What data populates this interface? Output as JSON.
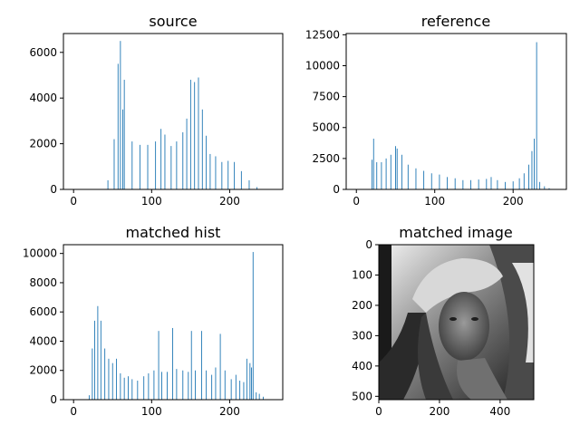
{
  "chart_data": [
    {
      "type": "bar",
      "title": "source",
      "xlabel": "",
      "ylabel": "",
      "xlim": [
        -13,
        268
      ],
      "ylim": [
        0,
        6825
      ],
      "xticks": [
        0,
        100,
        200
      ],
      "yticks": [
        0,
        2000,
        4000,
        6000
      ],
      "series": [
        {
          "bars": [
            [
              44,
              400
            ],
            [
              52,
              2200
            ],
            [
              57,
              5500
            ],
            [
              60,
              6500
            ],
            [
              63,
              3500
            ],
            [
              65,
              4800
            ],
            [
              75,
              2100
            ],
            [
              85,
              1950
            ],
            [
              95,
              1950
            ],
            [
              105,
              2100
            ],
            [
              112,
              2650
            ],
            [
              117,
              2400
            ],
            [
              125,
              1900
            ],
            [
              132,
              2100
            ],
            [
              140,
              2500
            ],
            [
              145,
              3100
            ],
            [
              150,
              4800
            ],
            [
              155,
              4700
            ],
            [
              160,
              4900
            ],
            [
              165,
              3500
            ],
            [
              170,
              2350
            ],
            [
              175,
              1550
            ],
            [
              182,
              1450
            ],
            [
              190,
              1200
            ],
            [
              198,
              1250
            ],
            [
              206,
              1200
            ],
            [
              215,
              800
            ],
            [
              225,
              400
            ],
            [
              235,
              100
            ]
          ]
        }
      ]
    },
    {
      "type": "bar",
      "title": "reference",
      "xlabel": "",
      "ylabel": "",
      "xlim": [
        -13,
        268
      ],
      "ylim": [
        0,
        12600
      ],
      "xticks": [
        0,
        100,
        200
      ],
      "yticks": [
        0,
        2500,
        5000,
        7500,
        10000,
        12500
      ],
      "series": [
        {
          "bars": [
            [
              20,
              2400
            ],
            [
              22,
              4100
            ],
            [
              26,
              2200
            ],
            [
              32,
              2200
            ],
            [
              38,
              2500
            ],
            [
              44,
              2800
            ],
            [
              50,
              3500
            ],
            [
              52,
              3300
            ],
            [
              58,
              2800
            ],
            [
              66,
              2000
            ],
            [
              76,
              1700
            ],
            [
              86,
              1500
            ],
            [
              96,
              1300
            ],
            [
              106,
              1200
            ],
            [
              116,
              1000
            ],
            [
              126,
              900
            ],
            [
              136,
              750
            ],
            [
              146,
              750
            ],
            [
              156,
              800
            ],
            [
              166,
              850
            ],
            [
              172,
              1000
            ],
            [
              180,
              750
            ],
            [
              190,
              600
            ],
            [
              200,
              650
            ],
            [
              208,
              900
            ],
            [
              214,
              1300
            ],
            [
              220,
              2000
            ],
            [
              224,
              3100
            ],
            [
              227,
              4100
            ],
            [
              230,
              11900
            ],
            [
              234,
              600
            ],
            [
              240,
              250
            ],
            [
              246,
              100
            ]
          ]
        }
      ]
    },
    {
      "type": "bar",
      "title": "matched hist",
      "xlabel": "",
      "ylabel": "",
      "xlim": [
        -13,
        268
      ],
      "ylim": [
        0,
        10600
      ],
      "xticks": [
        0,
        100,
        200
      ],
      "yticks": [
        0,
        2000,
        4000,
        6000,
        8000,
        10000
      ],
      "series": [
        {
          "bars": [
            [
              20,
              300
            ],
            [
              24,
              3500
            ],
            [
              27,
              5400
            ],
            [
              31,
              6400
            ],
            [
              35,
              5400
            ],
            [
              40,
              3500
            ],
            [
              45,
              2800
            ],
            [
              50,
              2500
            ],
            [
              55,
              2800
            ],
            [
              60,
              1800
            ],
            [
              65,
              1500
            ],
            [
              70,
              1600
            ],
            [
              75,
              1400
            ],
            [
              82,
              1300
            ],
            [
              90,
              1600
            ],
            [
              96,
              1800
            ],
            [
              103,
              2000
            ],
            [
              109,
              4700
            ],
            [
              113,
              1900
            ],
            [
              120,
              1900
            ],
            [
              127,
              4900
            ],
            [
              132,
              2100
            ],
            [
              140,
              2000
            ],
            [
              147,
              1900
            ],
            [
              151,
              4700
            ],
            [
              156,
              2000
            ],
            [
              164,
              4700
            ],
            [
              170,
              2000
            ],
            [
              177,
              1700
            ],
            [
              182,
              2200
            ],
            [
              188,
              4500
            ],
            [
              194,
              2000
            ],
            [
              202,
              1400
            ],
            [
              208,
              1700
            ],
            [
              213,
              1300
            ],
            [
              218,
              1200
            ],
            [
              222,
              2800
            ],
            [
              226,
              2500
            ],
            [
              228,
              2200
            ],
            [
              230,
              10100
            ],
            [
              234,
              500
            ],
            [
              238,
              400
            ],
            [
              243,
              200
            ]
          ]
        }
      ]
    },
    {
      "type": "heatmap",
      "title": "matched image",
      "xlabel": "",
      "ylabel": "",
      "xlim": [
        0,
        511
      ],
      "ylim": [
        511,
        0
      ],
      "xticks": [
        0,
        200,
        400
      ],
      "yticks": [
        0,
        100,
        200,
        300,
        400,
        500
      ]
    }
  ]
}
